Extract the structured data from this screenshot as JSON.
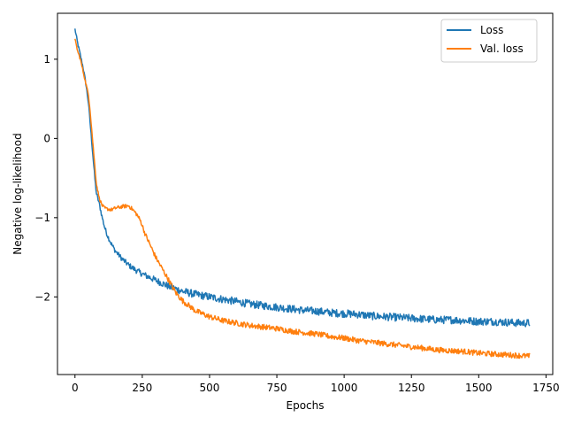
{
  "chart_data": {
    "type": "line",
    "title": "",
    "xlabel": "Epochs",
    "ylabel": "Negative log-likelihood",
    "xlim": [
      -65,
      1775
    ],
    "ylim": [
      -2.98,
      1.58
    ],
    "xticks": [
      0,
      250,
      500,
      750,
      1000,
      1250,
      1500,
      1750
    ],
    "xtick_labels": [
      "0",
      "250",
      "500",
      "750",
      "1000",
      "1250",
      "1500",
      "1750"
    ],
    "yticks": [
      -2,
      -1,
      0,
      1
    ],
    "ytick_labels": [
      "−2",
      "−1",
      "0",
      "1"
    ],
    "grid": false,
    "legend": {
      "position": "upper right"
    },
    "series": [
      {
        "name": "Loss",
        "color": "#1f77b4",
        "noise": 0.035,
        "x": [
          0,
          10,
          20,
          30,
          40,
          50,
          55,
          60,
          65,
          70,
          75,
          80,
          90,
          100,
          110,
          120,
          135,
          150,
          175,
          200,
          225,
          250,
          275,
          300,
          325,
          350,
          375,
          400,
          450,
          500,
          550,
          600,
          650,
          700,
          750,
          800,
          850,
          900,
          950,
          1000,
          1050,
          1100,
          1150,
          1200,
          1250,
          1300,
          1350,
          1400,
          1450,
          1500,
          1550,
          1600,
          1650,
          1690
        ],
        "y": [
          1.38,
          1.2,
          1.05,
          0.9,
          0.7,
          0.45,
          0.25,
          0.05,
          -0.15,
          -0.35,
          -0.55,
          -0.7,
          -0.82,
          -0.98,
          -1.12,
          -1.22,
          -1.33,
          -1.42,
          -1.52,
          -1.6,
          -1.66,
          -1.71,
          -1.75,
          -1.79,
          -1.83,
          -1.87,
          -1.9,
          -1.93,
          -1.97,
          -2.0,
          -2.03,
          -2.06,
          -2.09,
          -2.11,
          -2.13,
          -2.15,
          -2.17,
          -2.18,
          -2.2,
          -2.21,
          -2.22,
          -2.24,
          -2.25,
          -2.26,
          -2.27,
          -2.28,
          -2.29,
          -2.29,
          -2.3,
          -2.31,
          -2.31,
          -2.32,
          -2.33,
          -2.33
        ]
      },
      {
        "name": "Val. loss",
        "color": "#ff7f0e",
        "noise": 0.025,
        "x": [
          0,
          10,
          20,
          30,
          40,
          50,
          55,
          60,
          65,
          70,
          75,
          80,
          90,
          100,
          110,
          120,
          135,
          150,
          175,
          200,
          215,
          230,
          245,
          260,
          280,
          300,
          325,
          350,
          375,
          400,
          450,
          500,
          550,
          600,
          650,
          700,
          750,
          800,
          850,
          900,
          950,
          1000,
          1050,
          1100,
          1150,
          1200,
          1250,
          1300,
          1350,
          1400,
          1450,
          1500,
          1550,
          1600,
          1650,
          1690
        ],
        "y": [
          1.25,
          1.1,
          1.0,
          0.85,
          0.7,
          0.55,
          0.4,
          0.2,
          0.0,
          -0.2,
          -0.4,
          -0.58,
          -0.75,
          -0.84,
          -0.88,
          -0.89,
          -0.9,
          -0.88,
          -0.86,
          -0.85,
          -0.9,
          -0.96,
          -1.05,
          -1.2,
          -1.35,
          -1.5,
          -1.65,
          -1.8,
          -1.95,
          -2.05,
          -2.18,
          -2.25,
          -2.3,
          -2.33,
          -2.36,
          -2.38,
          -2.4,
          -2.43,
          -2.45,
          -2.47,
          -2.5,
          -2.52,
          -2.55,
          -2.57,
          -2.59,
          -2.61,
          -2.63,
          -2.65,
          -2.67,
          -2.68,
          -2.69,
          -2.71,
          -2.72,
          -2.73,
          -2.74,
          -2.75
        ]
      }
    ]
  }
}
